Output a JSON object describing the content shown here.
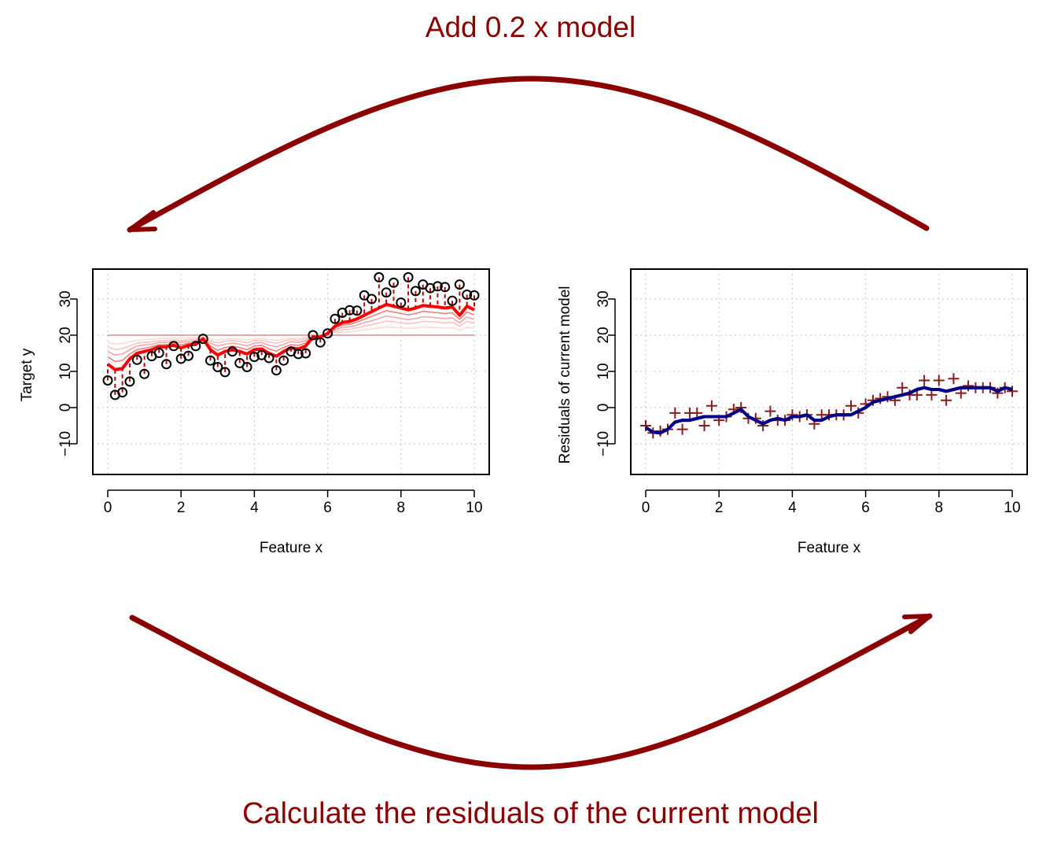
{
  "diagram": {
    "top_caption": "Add 0.2 x model",
    "bottom_caption": "Calculate the residuals of the current model",
    "arrow_color": "#8b0000"
  },
  "chart_data": [
    {
      "type": "scatter",
      "xlabel": "Feature x",
      "ylabel": "Target y",
      "xlim": [
        0,
        10
      ],
      "ylim": [
        -18,
        38
      ],
      "xticks": [
        "0",
        "2",
        "4",
        "6",
        "8",
        "10"
      ],
      "yticks": [
        "-10",
        "0",
        "10",
        "20",
        "30"
      ],
      "grid": true,
      "points_marker": "circle",
      "points_color": "#000000",
      "x": [
        0.0,
        0.2,
        0.4,
        0.6,
        0.8,
        1.0,
        1.2,
        1.4,
        1.6,
        1.8,
        2.0,
        2.2,
        2.4,
        2.6,
        2.8,
        3.0,
        3.2,
        3.4,
        3.6,
        3.8,
        4.0,
        4.2,
        4.4,
        4.6,
        4.8,
        5.0,
        5.2,
        5.4,
        5.6,
        5.8,
        6.0,
        6.2,
        6.4,
        6.6,
        6.8,
        7.0,
        7.2,
        7.4,
        7.6,
        7.8,
        8.0,
        8.2,
        8.4,
        8.6,
        8.8,
        9.0,
        9.2,
        9.4,
        9.6,
        9.8,
        10.0
      ],
      "y": [
        7.5,
        3.5,
        4.2,
        7.2,
        13.2,
        9.3,
        14.2,
        15.1,
        12.0,
        17.0,
        13.5,
        14.3,
        17.0,
        19.0,
        13.0,
        11.2,
        9.8,
        15.5,
        12.3,
        11.2,
        14.0,
        14.5,
        13.7,
        10.3,
        13.0,
        15.5,
        14.8,
        15.0,
        20.0,
        18.0,
        20.5,
        24.5,
        26.2,
        26.9,
        26.8,
        31.0,
        30.0,
        36.0,
        31.8,
        34.5,
        29.0,
        36.0,
        32.2,
        34.0,
        33.0,
        33.5,
        33.3,
        29.5,
        34.0,
        31.2,
        31.0
      ],
      "series": [
        {
          "name": "",
          "color": "#ff0000",
          "values": [
            12.0,
            10.5,
            10.8,
            13.5,
            15.0,
            15.5,
            16.0,
            16.8,
            16.8,
            17.2,
            16.5,
            17.2,
            17.5,
            19.0,
            16.0,
            14.5,
            15.5,
            16.0,
            15.5,
            14.8,
            16.0,
            16.2,
            15.0,
            14.2,
            15.5,
            16.5,
            16.2,
            17.0,
            19.5,
            19.5,
            20.5,
            22.5,
            23.5,
            23.8,
            24.5,
            25.5,
            26.5,
            27.5,
            28.5,
            28.0,
            27.5,
            27.0,
            27.5,
            28.2,
            28.0,
            27.8,
            27.5,
            27.8,
            25.5,
            28.0,
            27.0
          ]
        },
        {
          "name": "",
          "color": "#f08080",
          "values": [
            14.0,
            12.7,
            13.0,
            14.8,
            16.0,
            16.4,
            16.8,
            17.4,
            17.4,
            17.8,
            17.3,
            17.8,
            18.0,
            19.2,
            17.0,
            15.8,
            16.6,
            17.0,
            16.6,
            16.0,
            17.0,
            17.2,
            16.2,
            15.6,
            16.6,
            17.4,
            17.2,
            17.8,
            19.7,
            19.7,
            20.4,
            22.0,
            22.8,
            23.0,
            23.6,
            24.4,
            25.2,
            26.0,
            26.8,
            26.4,
            26.0,
            25.6,
            26.0,
            26.6,
            26.4,
            26.2,
            26.0,
            26.2,
            24.4,
            26.4,
            25.6
          ]
        },
        {
          "name": "",
          "color": "#f4a6a6",
          "values": [
            15.5,
            14.5,
            14.8,
            16.0,
            17.0,
            17.3,
            17.5,
            18.0,
            18.0,
            18.3,
            18.0,
            18.3,
            18.5,
            19.3,
            17.8,
            17.0,
            17.5,
            17.8,
            17.5,
            17.0,
            17.8,
            18.0,
            17.2,
            16.8,
            17.5,
            18.2,
            18.0,
            18.5,
            19.8,
            19.8,
            20.3,
            21.5,
            22.2,
            22.3,
            22.8,
            23.5,
            24.0,
            24.6,
            25.3,
            25.0,
            24.6,
            24.3,
            24.6,
            25.1,
            25.0,
            24.8,
            24.6,
            24.8,
            23.4,
            25.0,
            24.4
          ]
        },
        {
          "name": "",
          "color": "#f8c4c4",
          "values": [
            16.8,
            16.0,
            16.3,
            17.0,
            17.8,
            18.0,
            18.2,
            18.5,
            18.5,
            18.8,
            18.5,
            18.8,
            18.9,
            19.4,
            18.4,
            17.9,
            18.3,
            18.5,
            18.3,
            17.9,
            18.5,
            18.6,
            18.1,
            17.8,
            18.3,
            18.8,
            18.6,
            19.0,
            19.9,
            19.9,
            20.2,
            21.0,
            21.5,
            21.6,
            22.0,
            22.5,
            22.9,
            23.4,
            23.9,
            23.7,
            23.4,
            23.2,
            23.4,
            23.8,
            23.7,
            23.6,
            23.4,
            23.6,
            22.5,
            23.8,
            23.3
          ]
        },
        {
          "name": "",
          "color": "#fadada",
          "values": [
            18.0,
            17.5,
            17.7,
            18.2,
            18.6,
            18.8,
            18.9,
            19.1,
            19.1,
            19.3,
            19.1,
            19.3,
            19.3,
            19.6,
            19.0,
            18.7,
            18.9,
            19.0,
            18.9,
            18.7,
            19.0,
            19.1,
            18.8,
            18.6,
            18.9,
            19.2,
            19.1,
            19.4,
            19.9,
            19.9,
            20.1,
            20.6,
            20.9,
            20.9,
            21.2,
            21.5,
            21.7,
            22.0,
            22.3,
            22.2,
            22.0,
            21.9,
            22.0,
            22.3,
            22.2,
            22.1,
            22.0,
            22.1,
            21.4,
            22.2,
            21.9
          ]
        },
        {
          "name": "",
          "color": "#d98a8a",
          "values": [
            20,
            20,
            20,
            20,
            20,
            20,
            20,
            20,
            20,
            20,
            20,
            20,
            20,
            20,
            20,
            20,
            20,
            20,
            20,
            20,
            20,
            20,
            20,
            20,
            20,
            20,
            20,
            20,
            20,
            20,
            20,
            20,
            20,
            20,
            20,
            20,
            20,
            20,
            20,
            20,
            20,
            20,
            20,
            20,
            20,
            20,
            20,
            20,
            20,
            20,
            20
          ]
        }
      ]
    },
    {
      "type": "scatter",
      "xlabel": "Feature x",
      "ylabel": "Residuals of current model",
      "xlim": [
        0,
        10
      ],
      "ylim": [
        -18,
        38
      ],
      "xticks": [
        "0",
        "2",
        "4",
        "6",
        "8",
        "10"
      ],
      "yticks": [
        "-10",
        "0",
        "10",
        "20",
        "30"
      ],
      "grid": true,
      "points_marker": "plus",
      "points_color": "#8b1a1a",
      "x": [
        0.0,
        0.2,
        0.4,
        0.6,
        0.8,
        1.0,
        1.2,
        1.4,
        1.6,
        1.8,
        2.0,
        2.2,
        2.4,
        2.6,
        2.8,
        3.0,
        3.2,
        3.4,
        3.6,
        3.8,
        4.0,
        4.2,
        4.4,
        4.6,
        4.8,
        5.0,
        5.2,
        5.4,
        5.6,
        5.8,
        6.0,
        6.2,
        6.4,
        6.6,
        6.8,
        7.0,
        7.2,
        7.4,
        7.6,
        7.8,
        8.0,
        8.2,
        8.4,
        8.6,
        8.8,
        9.0,
        9.2,
        9.4,
        9.6,
        9.8,
        10.0
      ],
      "y": [
        -5.0,
        -7.0,
        -6.5,
        -6.0,
        -1.5,
        -6.0,
        -1.5,
        -1.5,
        -5.0,
        0.5,
        -3.5,
        -2.5,
        -0.5,
        0.0,
        -3.0,
        -3.0,
        -5.0,
        -1.0,
        -3.5,
        -3.5,
        -2.0,
        -2.5,
        -2.0,
        -4.5,
        -2.0,
        -2.0,
        -2.0,
        -2.0,
        0.5,
        -1.5,
        1.0,
        2.0,
        2.5,
        3.0,
        2.0,
        5.5,
        3.5,
        3.5,
        7.5,
        3.5,
        7.5,
        2.0,
        8.0,
        4.0,
        6.0,
        5.5,
        5.5,
        5.5,
        4.0,
        5.5,
        4.5
      ],
      "series": [
        {
          "name": "",
          "color": "#00008b",
          "values": [
            -5.5,
            -6.8,
            -7.0,
            -6.0,
            -4.0,
            -3.5,
            -3.5,
            -3.0,
            -2.5,
            -2.5,
            -2.5,
            -2.5,
            -1.5,
            -0.5,
            -2.5,
            -3.5,
            -4.5,
            -3.5,
            -3.0,
            -3.5,
            -2.5,
            -2.5,
            -2.0,
            -3.5,
            -3.5,
            -2.5,
            -2.0,
            -2.0,
            -2.0,
            -1.0,
            0.0,
            1.5,
            2.0,
            2.5,
            3.0,
            3.5,
            4.0,
            5.0,
            5.5,
            5.0,
            5.0,
            4.5,
            5.0,
            5.5,
            5.5,
            5.5,
            5.5,
            5.5,
            4.5,
            5.5,
            5.0
          ]
        }
      ]
    }
  ]
}
